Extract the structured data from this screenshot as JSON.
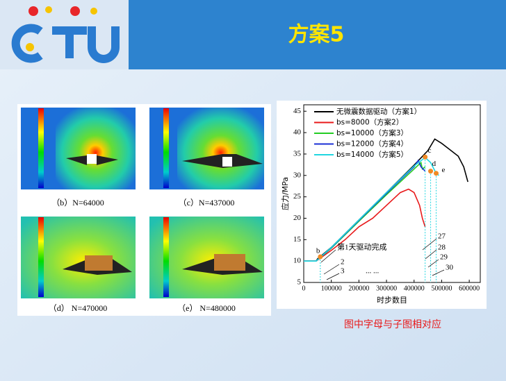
{
  "header": {
    "title": "方案5"
  },
  "figures": [
    {
      "caption": "（b）N=64000"
    },
    {
      "caption": "（c）N=437000"
    },
    {
      "caption": "（d） N=470000"
    },
    {
      "caption": "（e） N=480000"
    }
  ],
  "chart_data": {
    "type": "line",
    "x_label": "时步数目",
    "y_label": "应力/MPa",
    "xlim": [
      0,
      640000
    ],
    "ylim": [
      5,
      46.5
    ],
    "xticks": [
      0,
      100000,
      200000,
      300000,
      400000,
      500000,
      600000
    ],
    "yticks": [
      5,
      10,
      15,
      20,
      25,
      30,
      35,
      40,
      45
    ],
    "series": [
      {
        "name": "无微震数据驱动（方案1）",
        "color": "#000000",
        "x": [
          0,
          45000,
          50000,
          100000,
          200000,
          300000,
          400000,
          450000,
          475000,
          500000,
          530000,
          560000,
          580000,
          595000
        ],
        "values": [
          10,
          10,
          10.5,
          13.2,
          19.6,
          26,
          32.4,
          35.8,
          38.5,
          37.5,
          36,
          34.5,
          32,
          28.5
        ]
      },
      {
        "name": "bs=8000（方案2）",
        "color": "#e8191a",
        "x": [
          0,
          45000,
          100000,
          150000,
          200000,
          250000,
          300000,
          350000,
          380000,
          400000,
          420000,
          430000,
          440000
        ],
        "values": [
          10,
          10,
          12.5,
          15,
          18,
          20,
          23,
          26,
          26.8,
          26,
          23,
          20,
          18
        ]
      },
      {
        "name": "bs=10000（方案3）",
        "color": "#22cc22",
        "x": [
          0,
          45000,
          100000,
          200000,
          300000,
          400000,
          425000,
          430000,
          440000
        ],
        "values": [
          10,
          10,
          13,
          19.3,
          25.5,
          31.5,
          33,
          31.5,
          32
        ]
      },
      {
        "name": "bs=12000（方案4）",
        "color": "#1a2fd6",
        "x": [
          0,
          45000,
          100000,
          200000,
          300000,
          400000,
          415000,
          425000,
          440000
        ],
        "values": [
          10,
          10,
          13.1,
          19.5,
          25.8,
          32,
          33.5,
          32,
          31
        ]
      },
      {
        "name": "bs=14000（方案5）",
        "color": "#1fd6e0",
        "x": [
          0,
          45000,
          100000,
          200000,
          300000,
          400000,
          440000,
          460000,
          480000,
          490000
        ],
        "values": [
          10,
          10,
          13.2,
          19.6,
          26,
          32.2,
          34.2,
          33,
          30.5,
          30
        ]
      }
    ],
    "markers": [
      {
        "label": "b",
        "x": 60000,
        "y": 11
      },
      {
        "label": "c",
        "x": 440000,
        "y": 34.3
      },
      {
        "label": "d",
        "x": 460000,
        "y": 31
      },
      {
        "label": "e",
        "x": 480000,
        "y": 30.5
      }
    ],
    "annotations": [
      "第1天驱动完成",
      "2",
      "3",
      "... ...",
      "27",
      "28",
      "29",
      "30"
    ]
  },
  "note": "图中字母与子图相对应"
}
